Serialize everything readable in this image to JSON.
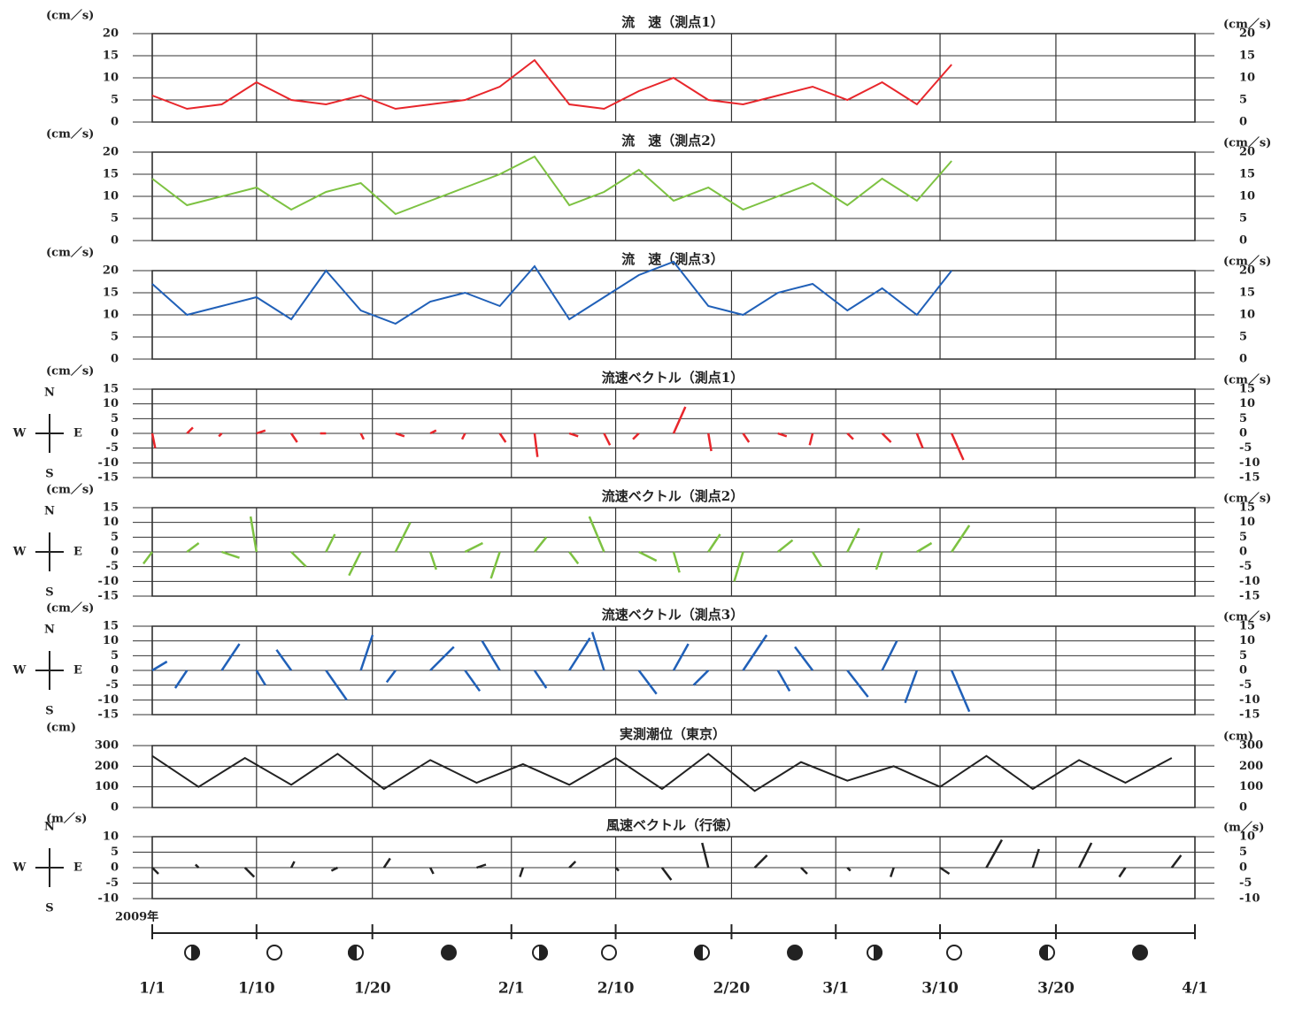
{
  "time_axis": {
    "xlim": [
      0,
      90
    ],
    "xticks": [
      {
        "value": 0,
        "label": "1/1"
      },
      {
        "value": 9,
        "label": "1/10"
      },
      {
        "value": 19,
        "label": "1/20"
      },
      {
        "value": 31,
        "label": "2/1"
      },
      {
        "value": 40,
        "label": "2/10"
      },
      {
        "value": 50,
        "label": "2/20"
      },
      {
        "value": 59,
        "label": "3/1"
      },
      {
        "value": 68,
        "label": "3/10"
      },
      {
        "value": 78,
        "label": "3/20"
      },
      {
        "value": 90,
        "label": "4/1"
      }
    ],
    "year_label": "2009年"
  },
  "compass": {
    "n": "N",
    "e": "E",
    "w": "W",
    "s": "S"
  },
  "chart_data": [
    {
      "type": "line",
      "title": "流　速（測点1）",
      "unit": "(cm／s)",
      "color": "#e8262b",
      "ylim": [
        0,
        20
      ],
      "yticks": [
        0,
        5,
        10,
        15,
        20
      ],
      "x": [
        0,
        3,
        6,
        9,
        12,
        15,
        18,
        21,
        24,
        27,
        30,
        33,
        36,
        39,
        42,
        45,
        48,
        51,
        54,
        57,
        60,
        63,
        66,
        69
      ],
      "values": [
        6,
        3,
        4,
        9,
        5,
        4,
        6,
        3,
        4,
        5,
        8,
        14,
        4,
        3,
        7,
        10,
        5,
        4,
        6,
        8,
        5,
        9,
        4,
        13
      ]
    },
    {
      "type": "line",
      "title": "流　速（測点2）",
      "unit": "(cm／s)",
      "color": "#7dc242",
      "ylim": [
        0,
        20
      ],
      "yticks": [
        0,
        5,
        10,
        15,
        20
      ],
      "x": [
        0,
        3,
        6,
        9,
        12,
        15,
        18,
        21,
        24,
        27,
        30,
        33,
        36,
        39,
        42,
        45,
        48,
        51,
        54,
        57,
        60,
        63,
        66,
        69
      ],
      "values": [
        14,
        8,
        10,
        12,
        7,
        11,
        13,
        6,
        9,
        12,
        15,
        19,
        8,
        11,
        16,
        9,
        12,
        7,
        10,
        13,
        8,
        14,
        9,
        18
      ]
    },
    {
      "type": "line",
      "title": "流　速（測点3）",
      "unit": "(cm／s)",
      "color": "#2060b8",
      "ylim": [
        0,
        20
      ],
      "yticks": [
        0,
        5,
        10,
        15,
        20
      ],
      "x": [
        0,
        3,
        6,
        9,
        12,
        15,
        18,
        21,
        24,
        27,
        30,
        33,
        36,
        39,
        42,
        45,
        48,
        51,
        54,
        57,
        60,
        63,
        66,
        69
      ],
      "values": [
        17,
        10,
        12,
        14,
        9,
        20,
        11,
        8,
        13,
        15,
        12,
        21,
        9,
        14,
        19,
        22,
        12,
        10,
        15,
        17,
        11,
        16,
        10,
        20
      ]
    },
    {
      "type": "quiver",
      "title": "流速ベクトル（測点1）",
      "unit": "(cm／s)",
      "color": "#e8262b",
      "ylim": [
        -15,
        15
      ],
      "yticks": [
        -15,
        -10,
        -5,
        0,
        5,
        10,
        15
      ],
      "x": [
        0,
        3,
        6,
        9,
        12,
        15,
        18,
        21,
        24,
        27,
        30,
        33,
        36,
        39,
        42,
        45,
        48,
        51,
        54,
        57,
        60,
        63,
        66,
        69
      ],
      "u": [
        1,
        2,
        -1,
        3,
        2,
        -2,
        1,
        3,
        2,
        -1,
        2,
        1,
        3,
        2,
        -2,
        4,
        1,
        2,
        3,
        -1,
        2,
        3,
        2,
        4
      ],
      "v": [
        -5,
        2,
        -1,
        1,
        -3,
        0,
        -2,
        -1,
        1,
        -2,
        -3,
        -8,
        -1,
        -4,
        -2,
        9,
        -6,
        -3,
        -1,
        -4,
        -2,
        -3,
        -5,
        -9
      ]
    },
    {
      "type": "quiver",
      "title": "流速ベクトル（測点2）",
      "unit": "(cm／s)",
      "color": "#7dc242",
      "ylim": [
        -15,
        15
      ],
      "yticks": [
        -15,
        -10,
        -5,
        0,
        5,
        10,
        15
      ],
      "x": [
        0,
        3,
        6,
        9,
        12,
        15,
        18,
        21,
        24,
        27,
        30,
        33,
        36,
        39,
        42,
        45,
        48,
        51,
        54,
        57,
        60,
        63,
        66,
        69
      ],
      "u": [
        -3,
        4,
        6,
        -2,
        5,
        3,
        -4,
        5,
        2,
        6,
        -3,
        4,
        3,
        -5,
        6,
        2,
        4,
        -3,
        5,
        3,
        4,
        -2,
        5,
        6
      ],
      "v": [
        -4,
        3,
        -2,
        12,
        -5,
        6,
        -8,
        10,
        -6,
        3,
        -9,
        5,
        -4,
        12,
        -3,
        -7,
        6,
        -10,
        4,
        -5,
        8,
        -6,
        3,
        9
      ]
    },
    {
      "type": "quiver",
      "title": "流速ベクトル（測点3）",
      "unit": "(cm／s)",
      "color": "#2060b8",
      "ylim": [
        -15,
        15
      ],
      "yticks": [
        -15,
        -10,
        -5,
        0,
        5,
        10,
        15
      ],
      "x": [
        0,
        3,
        6,
        9,
        12,
        15,
        18,
        21,
        24,
        27,
        30,
        33,
        36,
        39,
        42,
        45,
        48,
        51,
        54,
        57,
        60,
        63,
        66,
        69
      ],
      "u": [
        5,
        -4,
        6,
        3,
        -5,
        7,
        4,
        -3,
        8,
        5,
        -6,
        4,
        7,
        -4,
        6,
        5,
        -5,
        8,
        4,
        -6,
        7,
        5,
        -4,
        6
      ],
      "v": [
        3,
        -6,
        9,
        -5,
        7,
        -10,
        12,
        -4,
        8,
        -7,
        10,
        -6,
        11,
        13,
        -8,
        9,
        -5,
        12,
        -7,
        8,
        -9,
        10,
        -11,
        -14
      ]
    },
    {
      "type": "line",
      "title": "実測潮位（東京）",
      "unit": "(cm)",
      "color": "#222222",
      "ylim": [
        0,
        300
      ],
      "yticks": [
        0,
        100,
        200,
        300
      ],
      "x": [
        0,
        4,
        8,
        12,
        16,
        20,
        24,
        28,
        32,
        36,
        40,
        44,
        48,
        52,
        56,
        60,
        64,
        68,
        72,
        76,
        80,
        84,
        88
      ],
      "values": [
        250,
        100,
        240,
        110,
        260,
        90,
        230,
        120,
        210,
        110,
        240,
        90,
        260,
        80,
        220,
        130,
        200,
        100,
        250,
        90,
        230,
        120,
        240
      ]
    },
    {
      "type": "quiver",
      "title": "風速ベクトル（行徳）",
      "unit": "(m／s)",
      "color": "#222222",
      "ylim": [
        -10,
        10
      ],
      "yticks": [
        -10,
        -5,
        0,
        5,
        10
      ],
      "x": [
        0,
        4,
        8,
        12,
        16,
        20,
        24,
        28,
        32,
        36,
        40,
        44,
        48,
        52,
        56,
        60,
        64,
        68,
        72,
        76,
        80,
        84,
        88
      ],
      "u": [
        2,
        -1,
        3,
        1,
        -2,
        2,
        1,
        3,
        -1,
        2,
        1,
        3,
        -2,
        4,
        2,
        1,
        -1,
        3,
        5,
        2,
        4,
        -2,
        3
      ],
      "v": [
        -2,
        1,
        -3,
        2,
        -1,
        3,
        -2,
        1,
        -3,
        2,
        -1,
        -4,
        8,
        4,
        -2,
        -1,
        -3,
        -2,
        9,
        6,
        8,
        -3,
        4
      ]
    }
  ]
}
